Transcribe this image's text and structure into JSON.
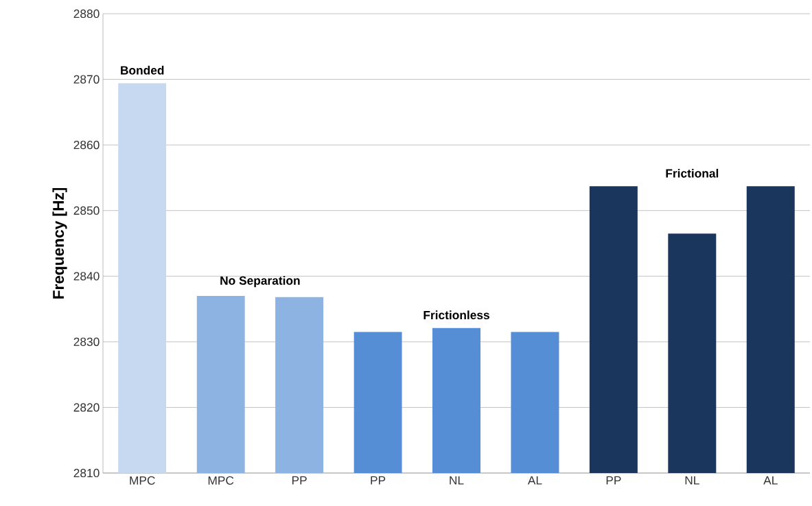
{
  "chart_data": {
    "type": "bar",
    "ylabel": "Frequency [Hz]",
    "categories": [
      "MPC",
      "MPC",
      "PP",
      "PP",
      "NL",
      "AL",
      "PP",
      "NL",
      "AL"
    ],
    "series": [
      {
        "name": "Bonded",
        "color": "#c6d9f1",
        "values": [
          2869.4,
          null,
          null,
          null,
          null,
          null,
          null,
          null,
          null
        ]
      },
      {
        "name": "No Separation",
        "color": "#8db3e2",
        "values": [
          null,
          2837.0,
          2836.8,
          null,
          null,
          null,
          null,
          null,
          null
        ]
      },
      {
        "name": "Frictionless",
        "color": "#558ed5",
        "values": [
          null,
          null,
          null,
          2831.5,
          2832.1,
          2831.5,
          null,
          null,
          null
        ]
      },
      {
        "name": "Frictional",
        "color": "#1b365d",
        "values": [
          null,
          null,
          null,
          null,
          null,
          null,
          2853.7,
          2846.5,
          2853.7
        ]
      }
    ],
    "ylim": [
      2810,
      2880
    ],
    "yticks": [
      2810,
      2820,
      2830,
      2840,
      2850,
      2860,
      2870,
      2880
    ],
    "grid": "y",
    "legend": false
  }
}
